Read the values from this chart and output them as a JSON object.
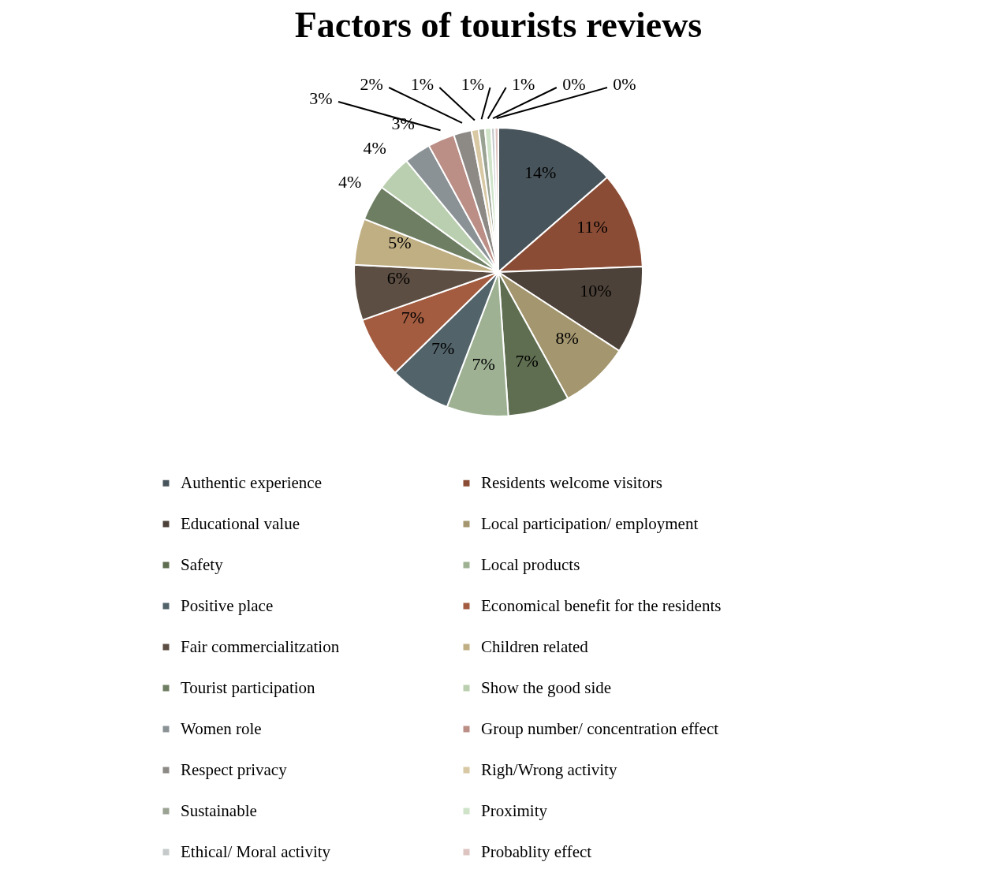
{
  "chart_data": {
    "type": "pie",
    "title": "Factors of tourists reviews",
    "categories": [
      "Authentic experience",
      "Residents welcome visitors",
      "Educational value",
      "Local participation/ employment",
      "Safety",
      "Local products",
      "Positive place",
      "Economical benefit for the residents",
      "Fair commercialitzation",
      "Children related",
      "Tourist participation",
      "Show the good side",
      "Women role",
      "Group number/ concentration effect",
      "Respect privacy",
      "Righ/Wrong activity",
      "Sustainable",
      "Proximity",
      "Ethical/ Moral activity",
      "Probablity effect"
    ],
    "values": [
      13.6,
      10.8,
      9.8,
      7.8,
      6.9,
      6.9,
      6.9,
      6.9,
      6.2,
      5.2,
      4,
      4,
      3,
      3,
      2,
      0.8,
      0.7,
      0.7,
      0.4,
      0.4
    ],
    "value_labels": [
      "14%",
      "11%",
      "10%",
      "8%",
      "7%",
      "7%",
      "7%",
      "7%",
      "6%",
      "5%",
      "4%",
      "4%",
      "3%",
      "3%",
      "2%",
      "1%",
      "1%",
      "1%",
      "0%",
      "0%"
    ],
    "colors": [
      "#48545b",
      "#8b4c35",
      "#4d4239",
      "#a4966e",
      "#5f6e50",
      "#9eb293",
      "#52636a",
      "#a35c40",
      "#5c4e42",
      "#c1af84",
      "#6e7e63",
      "#bacfaf",
      "#8a9296",
      "#bb8e86",
      "#8d8a86",
      "#d8c8a4",
      "#9aa393",
      "#cfe3c8",
      "#c7cacb",
      "#ddc4c0"
    ],
    "legend": "bottom"
  }
}
